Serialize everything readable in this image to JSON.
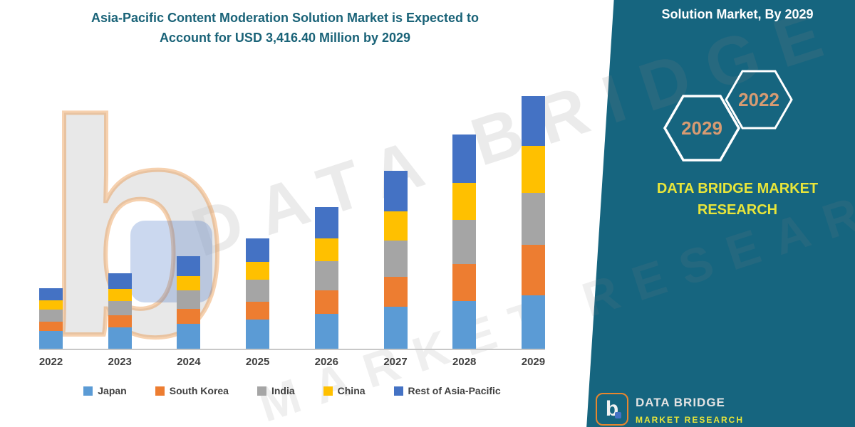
{
  "title_lines": {
    "line1": "Asia-Pacific Content Moderation Solution Market is Expected to",
    "line2": "Account for USD 3,416.40 Million by 2029"
  },
  "panel": {
    "heading": "Solution Market, By 2029",
    "hex_front_year": "2029",
    "hex_back_year": "2022",
    "brand_line1": "DATA BRIDGE MARKET",
    "brand_line2": "RESEARCH",
    "colors": {
      "background": "#16657F",
      "brand_text": "#E8E53A",
      "hex_year_text": "#D79B72",
      "hex_stroke": "#FFFFFF"
    }
  },
  "footer_logo": {
    "letter": "b",
    "brand": "DATA BRIDGE",
    "sub": "MARKET RESEARCH"
  },
  "watermark": {
    "line1": "DATA BRIDGE",
    "line2": "MARKET RESEARCH",
    "logo_letter": "b"
  },
  "chart_data": {
    "type": "bar",
    "stacked": true,
    "title": "Asia-Pacific Content Moderation Solution Market is Expected to Account for USD 3,416.40 Million by 2029",
    "unit": "USD Million",
    "total_2029": 3416.4,
    "categories": [
      "2022",
      "2023",
      "2024",
      "2025",
      "2026",
      "2027",
      "2028",
      "2029"
    ],
    "series": [
      {
        "name": "Japan",
        "color": "#5B9BD5",
        "values": [
          240,
          285,
          335,
          395,
          475,
          565,
          645,
          725
        ]
      },
      {
        "name": "South Korea",
        "color": "#ED7D31",
        "values": [
          130,
          165,
          200,
          240,
          315,
          405,
          505,
          680
        ]
      },
      {
        "name": "India",
        "color": "#A5A5A5",
        "values": [
          160,
          200,
          250,
          300,
          390,
          490,
          595,
          700
        ]
      },
      {
        "name": "China",
        "color": "#FFC000",
        "values": [
          130,
          160,
          200,
          240,
          310,
          400,
          495,
          640
        ]
      },
      {
        "name": "Rest of Asia-Pacific",
        "color": "#4472C4",
        "values": [
          160,
          210,
          265,
          320,
          430,
          545,
          655,
          671.4
        ]
      }
    ],
    "ylim": [
      0,
      3500
    ],
    "grid": false,
    "legend_position": "bottom"
  }
}
